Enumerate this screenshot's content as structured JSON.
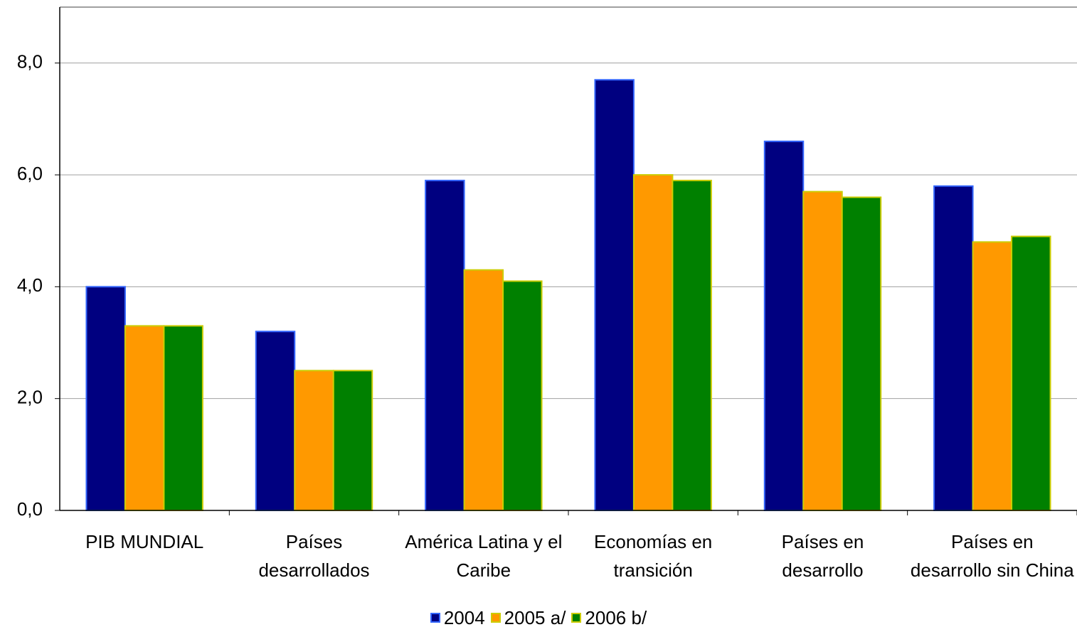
{
  "chart_data": {
    "type": "bar",
    "categories": [
      "PIB MUNDIAL",
      "Países desarrollados",
      "América Latina y el Caribe",
      "Economías en transición",
      "Países en desarrollo",
      "Países en desarrollo sin China"
    ],
    "series": [
      {
        "name": "2004",
        "color": "#000080",
        "values": [
          4.0,
          3.2,
          5.9,
          7.7,
          6.6,
          5.8
        ]
      },
      {
        "name": "2005 a/",
        "color": "#ff9900",
        "values": [
          3.3,
          2.5,
          4.3,
          6.0,
          5.7,
          4.8
        ]
      },
      {
        "name": "2006 b/",
        "color": "#008000",
        "values": [
          3.3,
          2.5,
          4.1,
          5.9,
          5.6,
          4.9
        ]
      }
    ],
    "ylim": [
      0,
      9
    ],
    "yticks": [
      {
        "value": 0,
        "label": "0,0"
      },
      {
        "value": 2,
        "label": "2,0"
      },
      {
        "value": 4,
        "label": "4,0"
      },
      {
        "value": 6,
        "label": "6,0"
      },
      {
        "value": 8,
        "label": "8,0"
      }
    ],
    "grid": true,
    "legend": "bottom"
  }
}
